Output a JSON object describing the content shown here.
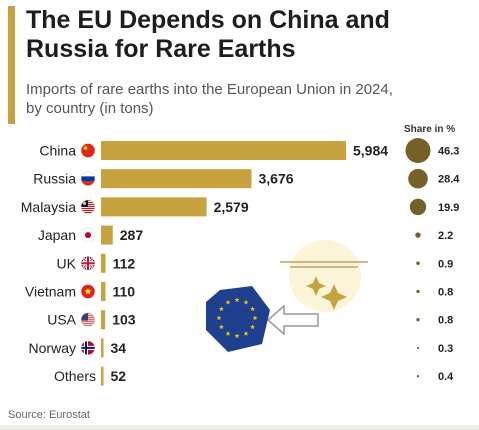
{
  "header": {
    "title": "The EU Depends on China and Russia for Rare Earths",
    "subtitle": "Imports of rare earths into the European Union in 2024, by country (in tons)"
  },
  "share_header": "Share in %",
  "source": "Source: Eurostat",
  "colors": {
    "accent": "#c6a33e",
    "bar": "#c6a33e",
    "share_dot": "#76602a",
    "eu_blue": "#1f3f8f",
    "eu_star": "#f5c800"
  },
  "icons": [
    "eu-flag-icon",
    "sparkle-icon",
    "arrow-icon"
  ],
  "chart_data": {
    "type": "bar",
    "orientation": "horizontal",
    "title": "The EU Depends on China and Russia for Rare Earths",
    "subtitle": "Imports of rare earths into the European Union in 2024, by country (in tons)",
    "categories": [
      "China",
      "Russia",
      "Malaysia",
      "Japan",
      "UK",
      "Vietnam",
      "USA",
      "Norway",
      "Others"
    ],
    "values": [
      5984,
      3676,
      2579,
      287,
      112,
      110,
      103,
      34,
      52
    ],
    "value_labels": [
      "5,984",
      "3,676",
      "2,579",
      "287",
      "112",
      "110",
      "103",
      "34",
      "52"
    ],
    "share_percent": [
      46.3,
      28.4,
      19.9,
      2.2,
      0.9,
      0.8,
      0.8,
      0.3,
      0.4
    ],
    "share_labels": [
      "46.3",
      "28.4",
      "19.9",
      "2.2",
      "0.9",
      "0.8",
      "0.8",
      "0.3",
      "0.4"
    ],
    "flags": [
      "china-flag-icon",
      "russia-flag-icon",
      "malaysia-flag-icon",
      "japan-flag-icon",
      "uk-flag-icon",
      "vietnam-flag-icon",
      "usa-flag-icon",
      "norway-flag-icon",
      ""
    ],
    "xlim": [
      0,
      5984
    ],
    "grid": false
  }
}
